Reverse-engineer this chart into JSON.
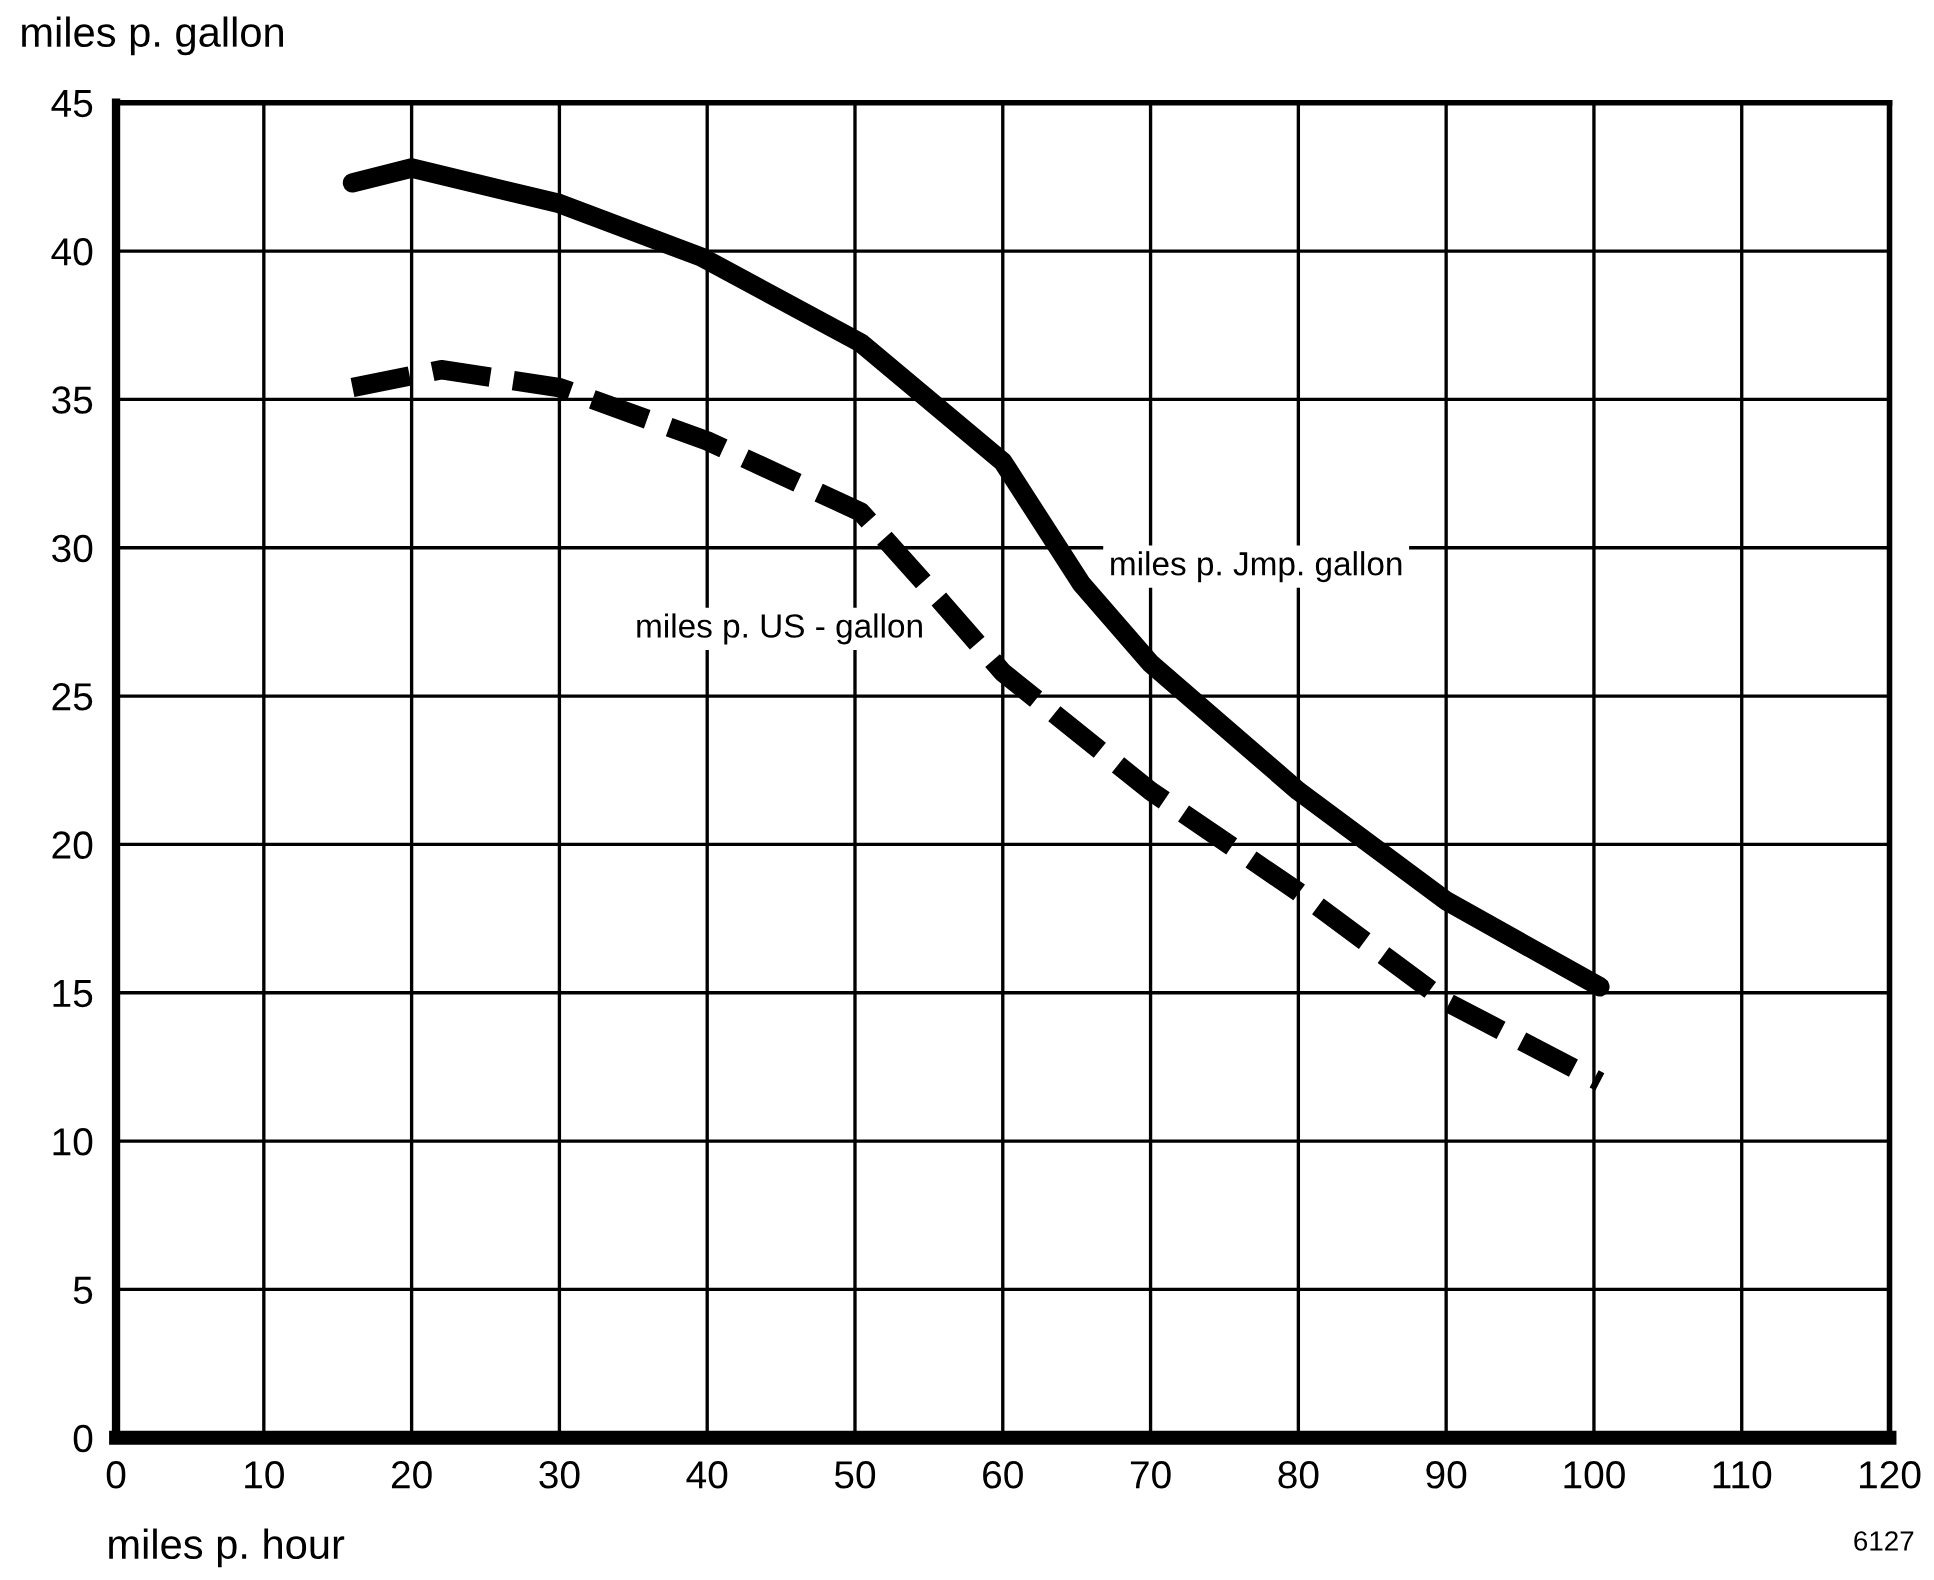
{
  "chart_data": {
    "type": "line",
    "xlabel": "miles p. hour",
    "ylabel": "miles p. gallon",
    "xlim": [
      0,
      120
    ],
    "ylim": [
      0,
      45
    ],
    "xticks": [
      0,
      10,
      20,
      30,
      40,
      50,
      60,
      70,
      80,
      90,
      100,
      110,
      120
    ],
    "yticks": [
      0,
      5,
      10,
      15,
      20,
      25,
      30,
      35,
      40,
      45
    ],
    "grid": true,
    "legend": false,
    "marker": "none",
    "series": [
      {
        "name": "miles p. Jmp. gallon",
        "color": "#000000",
        "line_style": "solid",
        "x": [
          16,
          20,
          30,
          39.6,
          50.4,
          60,
          65.3,
          70,
          80,
          90,
          100.4
        ],
        "values": [
          42.3,
          42.8,
          41.6,
          39.8,
          36.9,
          32.9,
          28.8,
          26.1,
          21.8,
          18.1,
          15.2
        ]
      },
      {
        "name": "miles p. US - gallon",
        "color": "#000000",
        "line_style": "dashed",
        "x": [
          16,
          22,
          30,
          40,
          50.4,
          55.8,
          60,
          70,
          80,
          90,
          100.4
        ],
        "values": [
          35.4,
          36.0,
          35.4,
          33.6,
          31.2,
          28.2,
          25.8,
          21.8,
          18.4,
          14.7,
          12.0
        ]
      }
    ],
    "annotations": [
      "6127"
    ]
  }
}
